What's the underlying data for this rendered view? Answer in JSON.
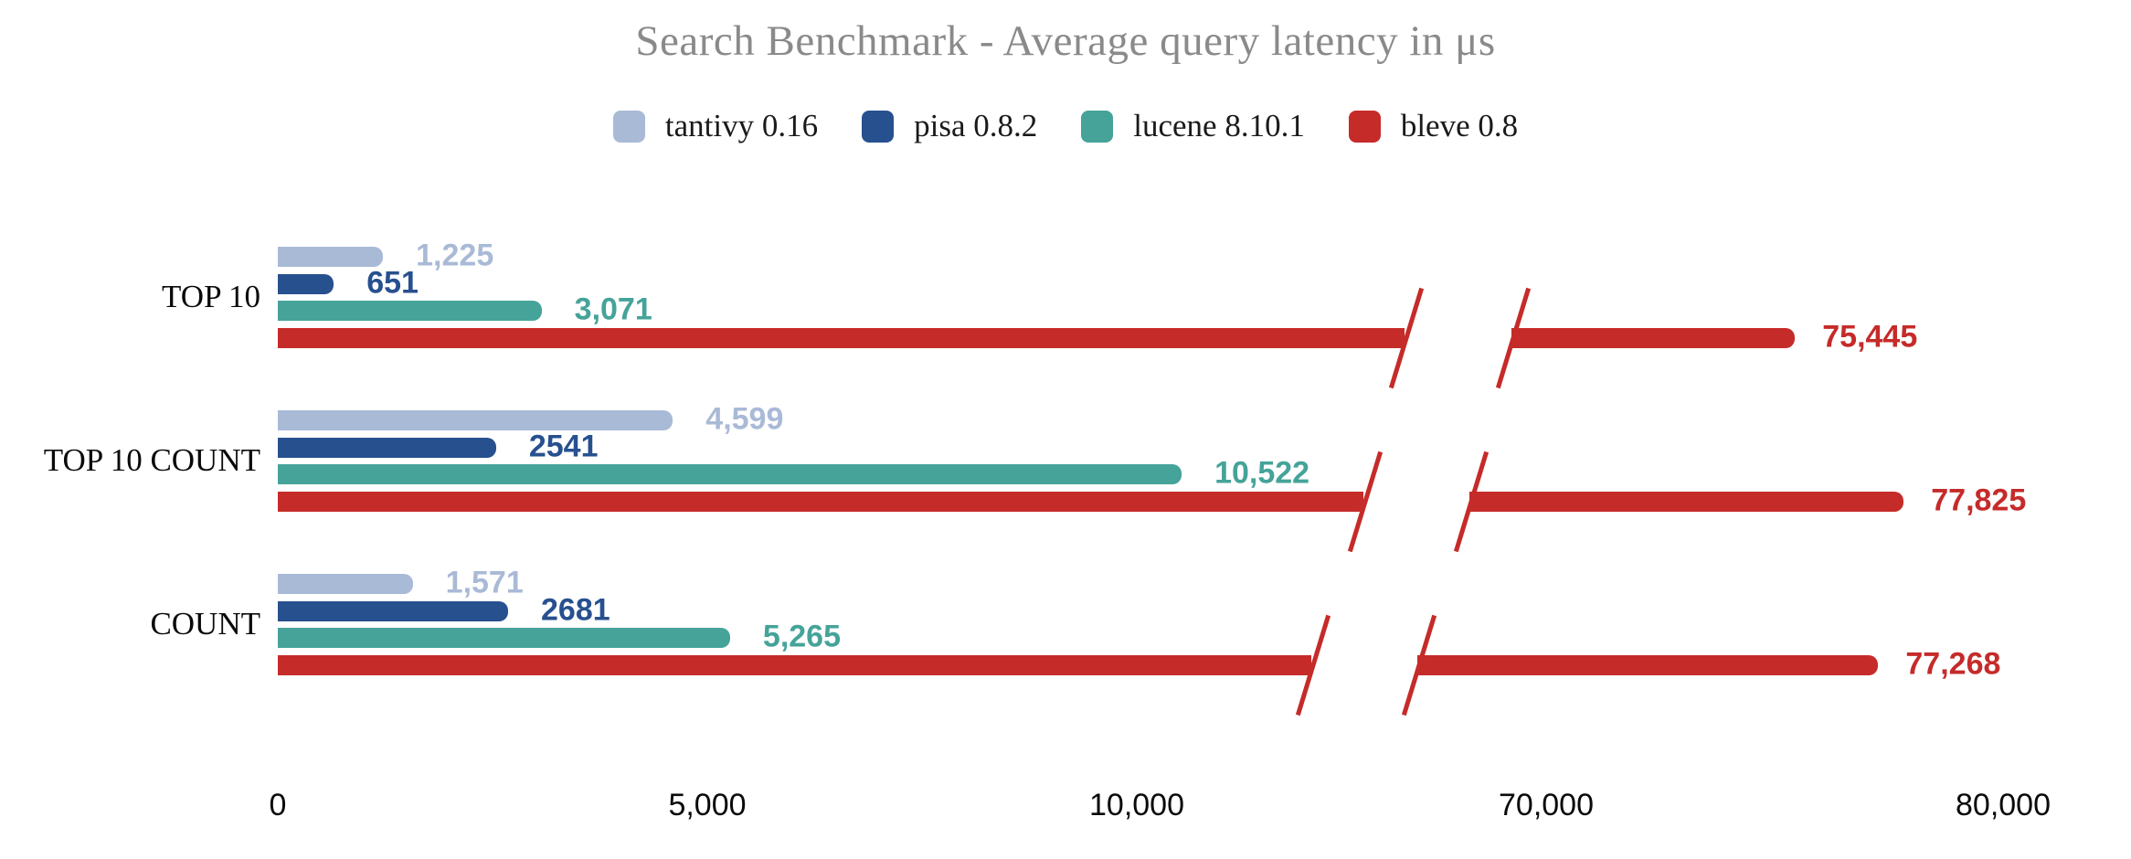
{
  "title": "Search Benchmark - Average query latency in μs",
  "chart_data": {
    "type": "bar",
    "orientation": "horizontal",
    "title": "Search Benchmark - Average query latency in μs",
    "unit": "μs",
    "categories": [
      "TOP 10",
      "TOP 10 COUNT",
      "COUNT"
    ],
    "series": [
      {
        "name": "tantivy 0.16",
        "color": "#a9bad7",
        "values": [
          1225,
          4599,
          1571
        ],
        "labels": [
          "1,225",
          "4,599",
          "1,571"
        ]
      },
      {
        "name": "pisa 0.8.2",
        "color": "#27508f",
        "values": [
          651,
          2541,
          2681
        ],
        "labels": [
          "651",
          "2541",
          "2681"
        ]
      },
      {
        "name": "lucene 8.10.1",
        "color": "#45a399",
        "values": [
          3071,
          10522,
          5265
        ],
        "labels": [
          "3,071",
          "10,522",
          "5,265"
        ]
      },
      {
        "name": "bleve 0.8",
        "color": "#c52b29",
        "values": [
          75445,
          77825,
          77268
        ],
        "labels": [
          "75,445",
          "77,825",
          "77,268"
        ]
      }
    ],
    "x_axis": {
      "ticks": [
        {
          "value": 0,
          "label": "0"
        },
        {
          "value": 5000,
          "label": "5,000"
        },
        {
          "value": 10000,
          "label": "10,000"
        },
        {
          "value": 70000,
          "label": "70,000"
        },
        {
          "value": 80000,
          "label": "80,000"
        }
      ],
      "axis_break": {
        "after_value": 13000,
        "resume_value": 69000
      }
    },
    "legend_position": "top",
    "grid": false
  }
}
